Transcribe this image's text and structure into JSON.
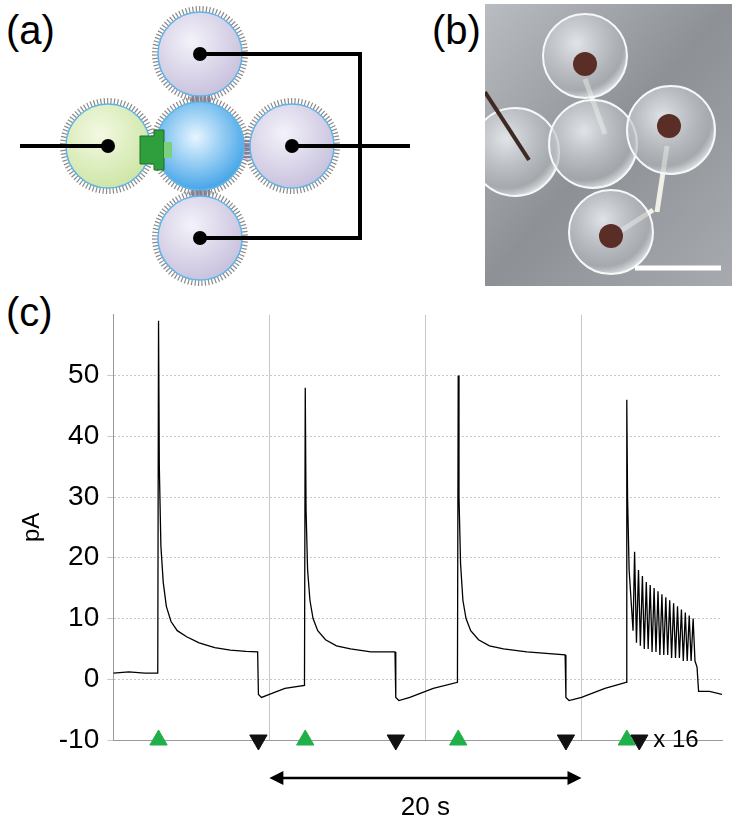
{
  "panel_labels": [
    "(a)",
    "(b)",
    "(c)"
  ],
  "chart_data": {
    "type": "line",
    "ylabel": "pA",
    "color": "#000000",
    "x": [
      0,
      1,
      2,
      2.85,
      2.9,
      2.95,
      3.05,
      3.2,
      3.4,
      3.7,
      4.1,
      4.7,
      5.5,
      6.5,
      7.5,
      8.5,
      9.25,
      9.3,
      9.5,
      10,
      11,
      12.25,
      12.3,
      12.35,
      12.45,
      12.6,
      12.8,
      13.1,
      13.6,
      14.3,
      15.2,
      16.5,
      18.05,
      18.1,
      18.3,
      19,
      20.5,
      22.05,
      22.1,
      22.15,
      22.25,
      22.4,
      22.6,
      22.9,
      23.4,
      24.1,
      25,
      26.5,
      28.95,
      29,
      29.2,
      30,
      31.5,
      32.85,
      32.9,
      32.95,
      33.05,
      33.2,
      33.3,
      33.4,
      33.52,
      33.65,
      33.77,
      33.9,
      34.02,
      34.15,
      34.27,
      34.4,
      34.52,
      34.65,
      34.77,
      34.9,
      35.02,
      35.15,
      35.27,
      35.4,
      35.52,
      35.65,
      35.77,
      35.9,
      36.02,
      36.15,
      36.27,
      36.4,
      36.52,
      36.65,
      36.77,
      36.9,
      37.02,
      37.15,
      37.27,
      37.4,
      37.5,
      38.2,
      39
    ],
    "values": [
      1,
      1.2,
      1,
      1,
      59,
      35,
      22,
      16,
      12,
      9.5,
      8,
      7,
      6,
      5.2,
      4.8,
      4.6,
      4.5,
      -2.5,
      -3,
      -2.5,
      -1.5,
      -1,
      48,
      28,
      18,
      13,
      10,
      8,
      6.5,
      5.5,
      5,
      4.5,
      4.5,
      -3,
      -3.5,
      -3,
      -1.5,
      -0.5,
      50,
      30,
      19,
      13,
      10,
      8,
      6.5,
      5.5,
      5,
      4.5,
      4,
      -3,
      -3.5,
      -3,
      -1.5,
      -0.5,
      46,
      30,
      18,
      12,
      8,
      21,
      6,
      18,
      5.5,
      17,
      5,
      16,
      5,
      15.5,
      4.5,
      15,
      4.5,
      14.5,
      4,
      14,
      4,
      13.5,
      4,
      13,
      3.5,
      12.5,
      3.5,
      12,
      3.5,
      11.5,
      3,
      11,
      3,
      10.5,
      3,
      10,
      3,
      2,
      -2,
      -2,
      -2.5
    ],
    "xlim": [
      0,
      39
    ],
    "xticks": [
      0,
      10,
      20,
      30
    ],
    "ylim": [
      -10,
      60
    ],
    "yticks": [
      -10,
      0,
      10,
      20,
      30,
      40,
      50
    ],
    "grid": true,
    "tick_labels": "y",
    "markers": [
      {
        "marker": "triangle-up",
        "color": "#1fb04a",
        "x": [
          2.9,
          12.3,
          22.1,
          32.9
        ]
      },
      {
        "marker": "triangle-down",
        "color": "#111111",
        "x": [
          9.3,
          18.1,
          29.0,
          33.7
        ]
      }
    ],
    "annotations": [
      {
        "text": "x 16",
        "x": 33.7
      }
    ],
    "scale_bar": {
      "label": "20 s",
      "length": 20
    }
  }
}
